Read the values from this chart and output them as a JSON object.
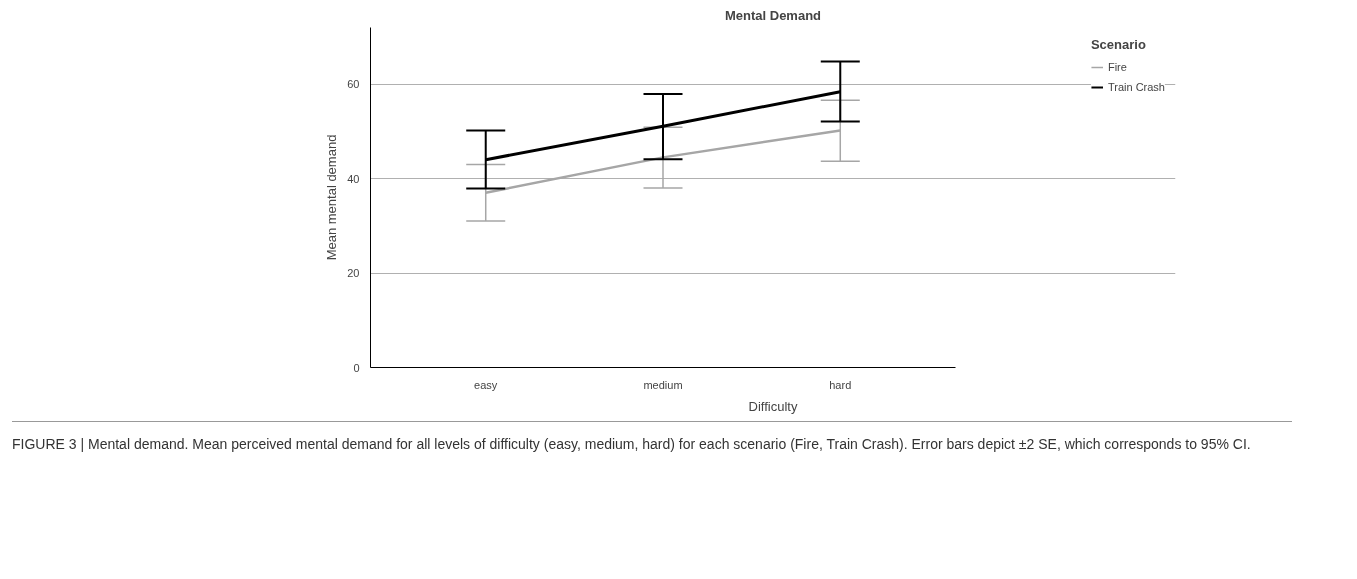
{
  "chart_data": {
    "type": "line",
    "title": "Mental Demand",
    "xlabel": "Difficulty",
    "ylabel": "Mean mental demand",
    "legend_title": "Scenario",
    "categories": [
      "easy",
      "medium",
      "hard"
    ],
    "series": [
      {
        "name": "Fire",
        "color": "#a6a6a6",
        "values": [
          37.0,
          44.5,
          50.2
        ],
        "errors": [
          [
            31.0,
            43.0
          ],
          [
            38.0,
            50.9
          ],
          [
            43.7,
            56.6
          ]
        ]
      },
      {
        "name": "Train Crash",
        "color": "#000000",
        "values": [
          44.0,
          51.1,
          58.4
        ],
        "errors": [
          [
            37.9,
            50.2
          ],
          [
            44.1,
            57.9
          ],
          [
            52.1,
            64.8
          ]
        ]
      }
    ],
    "ylim": [
      0,
      72
    ],
    "yticks": [
      0,
      20,
      40,
      60
    ],
    "grid": "y",
    "legend": "top right",
    "marker": "none",
    "line_style": "solid",
    "annotations": [
      "FIGURE 3 | Mental demand. Mean perceived mental demand for all levels of difficulty (easy, medium, hard) for each scenario (Fire, Train Crash). Error bars depict ±2 SE, which corresponds to 95% CI."
    ]
  }
}
